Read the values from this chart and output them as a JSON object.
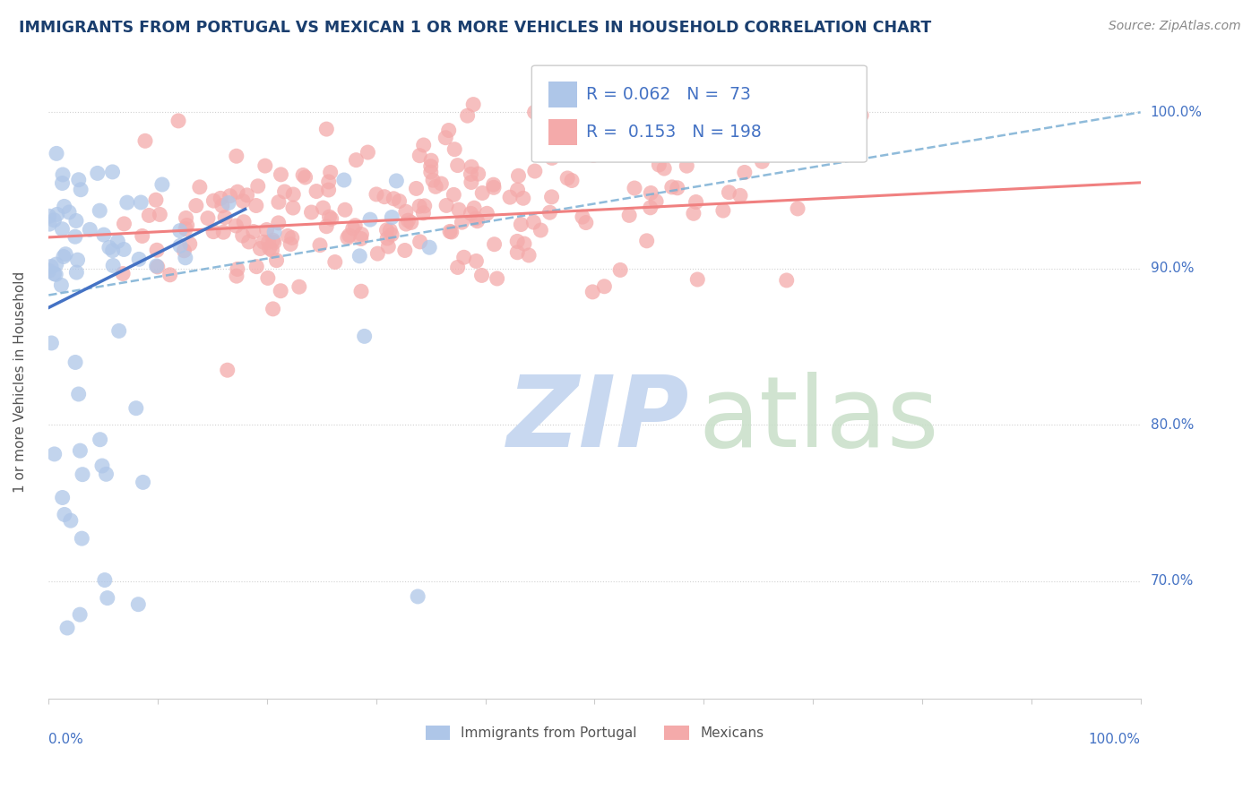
{
  "title": "IMMIGRANTS FROM PORTUGAL VS MEXICAN 1 OR MORE VEHICLES IN HOUSEHOLD CORRELATION CHART",
  "source": "Source: ZipAtlas.com",
  "ylabel": "1 or more Vehicles in Household",
  "y_ticks": [
    0.7,
    0.8,
    0.9,
    1.0
  ],
  "y_tick_labels": [
    "70.0%",
    "80.0%",
    "90.0%",
    "100.0%"
  ],
  "blue_scatter_color": "#aec6e8",
  "pink_scatter_color": "#f4aaaa",
  "blue_line_color": "#4472c4",
  "pink_line_color": "#f08080",
  "dashed_line_color": "#7bafd4",
  "watermark_zip_color": "#c8d8f0",
  "watermark_atlas_color": "#c8dfc8",
  "background_color": "#ffffff",
  "grid_color": "#cccccc",
  "title_color": "#1a3e6e",
  "axis_label_color": "#4472c4",
  "legend_R_color": "#4472c4",
  "ylim_low": 0.625,
  "ylim_high": 1.03,
  "xlim_low": 0.0,
  "xlim_high": 1.0
}
